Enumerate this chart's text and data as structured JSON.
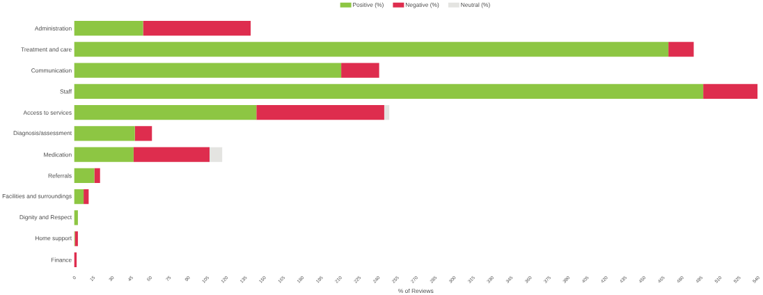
{
  "chart_data": {
    "type": "bar",
    "orientation": "horizontal",
    "stacked": true,
    "xlabel": "% of Reviews",
    "legend": "top",
    "grid": false,
    "categories": [
      "Administration",
      "Treatment and care",
      "Communication",
      "Staff",
      "Access to services",
      "Diagnosis/assessment",
      "Medication",
      "Referrals",
      "Facilities and surroundings",
      "Dignity and Respect",
      "Home support",
      "Finance"
    ],
    "series": [
      {
        "name": "Positive (%)",
        "color": "#8dc643",
        "values": [
          54.5,
          469.5,
          211,
          497,
          144,
          48,
          47,
          16,
          7.5,
          3,
          0.6,
          0
        ]
      },
      {
        "name": "Negative (%)",
        "color": "#de2d4e",
        "values": [
          85,
          20,
          30,
          43,
          101,
          13.5,
          60,
          4.5,
          4,
          0,
          2.4,
          2
        ]
      },
      {
        "name": "Neutral (%)",
        "color": "#e4e4e1",
        "values": [
          0,
          0,
          0,
          0,
          4,
          0,
          10,
          0,
          0,
          0,
          0,
          0
        ]
      }
    ],
    "xlim": [
      0,
      540
    ],
    "xticks": [
      0,
      15,
      30,
      45,
      60,
      75,
      90,
      105,
      120,
      135,
      150,
      165,
      180,
      195,
      210,
      225,
      240,
      255,
      270,
      285,
      300,
      315,
      330,
      345,
      360,
      375,
      390,
      405,
      420,
      435,
      450,
      465,
      480,
      495,
      510,
      525,
      540
    ]
  }
}
